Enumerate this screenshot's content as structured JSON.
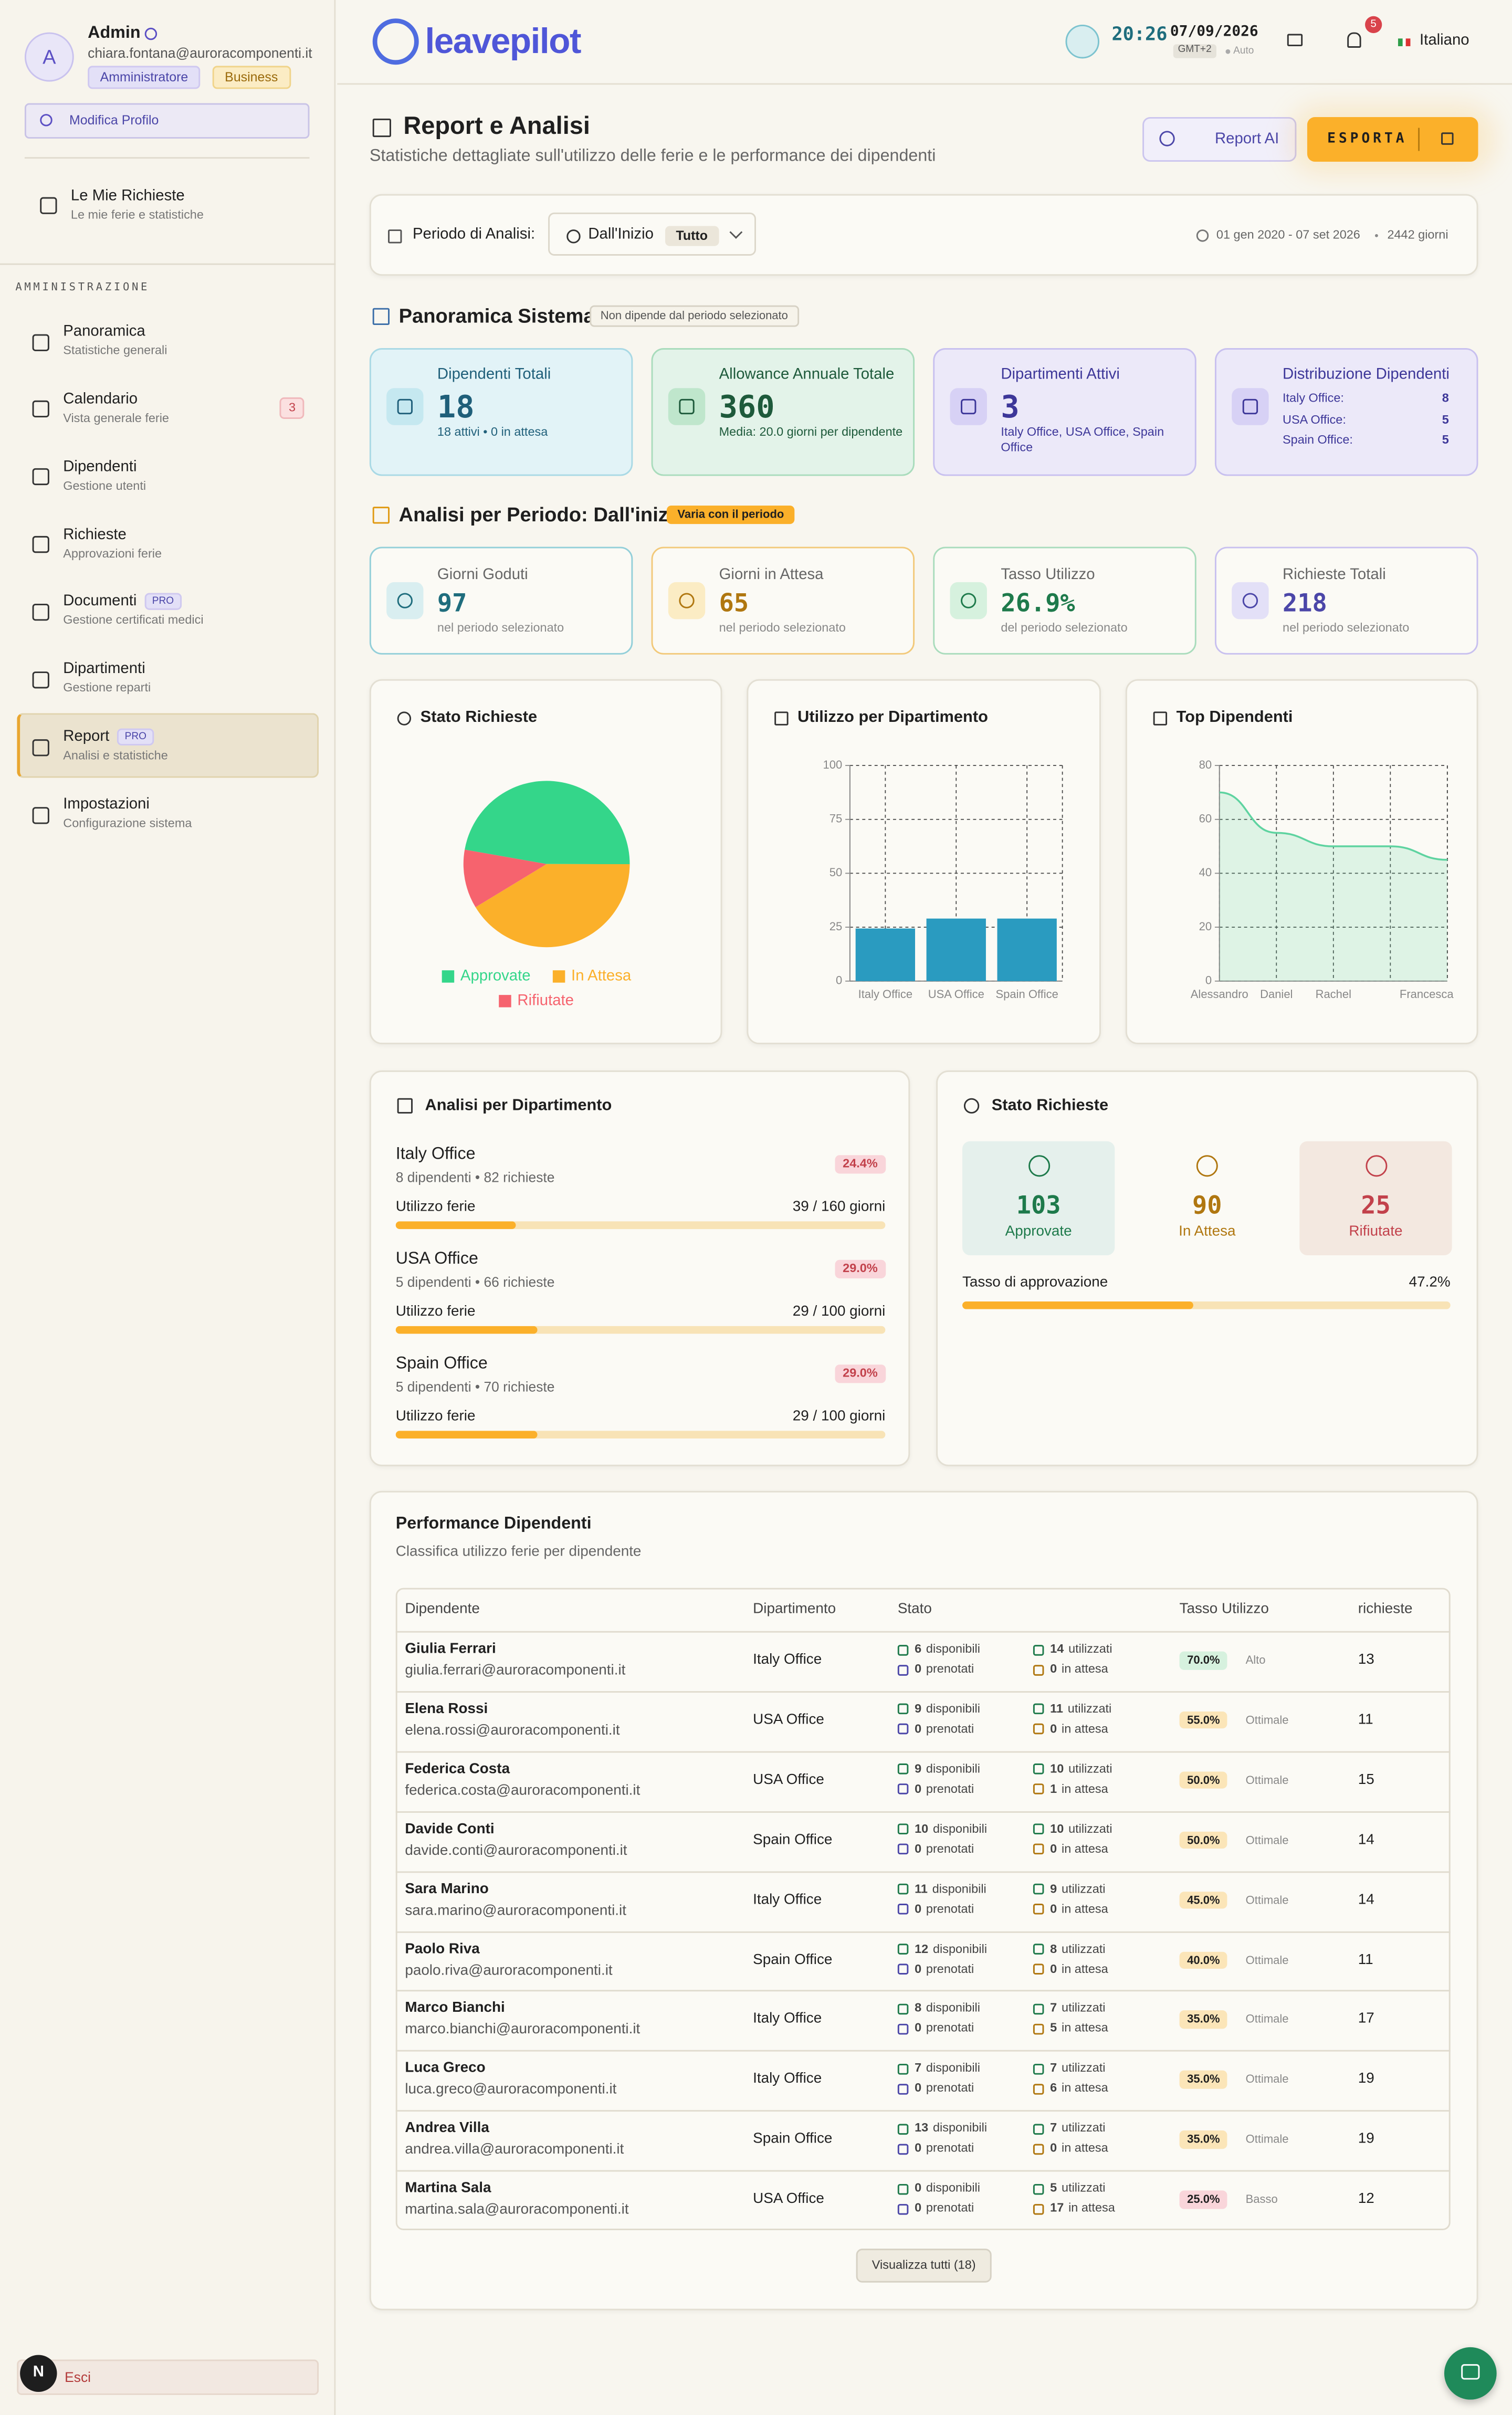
{
  "sidebar": {
    "user": {
      "initial": "A",
      "name": "Admin",
      "email": "chiara.fontana@auroracomponenti.it",
      "roles": [
        "Amministratore",
        "Business"
      ],
      "edit": "Modifica Profilo"
    },
    "my_requests": {
      "title": "Le Mie Richieste",
      "subtitle": "Le mie ferie e statistiche"
    },
    "section": "AMMINISTRAZIONE",
    "items": [
      {
        "title": "Panoramica",
        "subtitle": "Statistiche generali"
      },
      {
        "title": "Calendario",
        "subtitle": "Vista generale ferie",
        "badge": "3"
      },
      {
        "title": "Dipendenti",
        "subtitle": "Gestione utenti"
      },
      {
        "title": "Richieste",
        "subtitle": "Approvazioni ferie"
      },
      {
        "title": "Documenti",
        "subtitle": "Gestione certificati medici",
        "tag": "PRO"
      },
      {
        "title": "Dipartimenti",
        "subtitle": "Gestione reparti"
      },
      {
        "title": "Report",
        "subtitle": "Analisi e statistiche",
        "tag": "PRO",
        "active": true
      },
      {
        "title": "Impostazioni",
        "subtitle": "Configurazione sistema"
      }
    ],
    "avatar": "N",
    "logout": "Esci"
  },
  "header": {
    "logo": "leavepilot",
    "time": "20:26",
    "date": "07/09/2026",
    "timezone": "GMT+2",
    "auto": "Auto",
    "notifications": "5",
    "language": "Italiano"
  },
  "page": {
    "title": "Report e Analisi",
    "subtitle": "Statistiche dettagliate sull'utilizzo delle ferie e le performance dei dipendenti",
    "report_ai": "Report AI",
    "export": "ESPORTA"
  },
  "period": {
    "label": "Periodo di Analisi:",
    "selector": "Dall'Inizio",
    "tag": "Tutto",
    "range": "01 gen 2020 - 07 set 2026",
    "days": "2442 giorni"
  },
  "overview": {
    "title": "Panoramica Sistema",
    "note": "Non dipende dal periodo selezionato",
    "cards": [
      {
        "title": "Dipendenti Totali",
        "value": "18",
        "detail": "18 attivi • 0 in attesa"
      },
      {
        "title": "Allowance Annuale Totale",
        "value": "360",
        "detail": "Media: 20.0 giorni per dipendente"
      },
      {
        "title": "Dipartimenti Attivi",
        "value": "3",
        "detail": "Italy Office, USA Office, Spain Office"
      },
      {
        "title": "Distribuzione Dipendenti",
        "rows": [
          {
            "label": "Italy Office:",
            "value": "8"
          },
          {
            "label": "USA Office:",
            "value": "5"
          },
          {
            "label": "Spain Office:",
            "value": "5"
          }
        ]
      }
    ]
  },
  "period_analysis": {
    "title": "Analisi per Periodo: Dall'inizio",
    "tag": "Varia con il periodo",
    "cards": [
      {
        "title": "Giorni Goduti",
        "value": "97",
        "detail": "nel periodo selezionato"
      },
      {
        "title": "Giorni in Attesa",
        "value": "65",
        "detail": "nel periodo selezionato"
      },
      {
        "title": "Tasso Utilizzo",
        "value": "26.9%",
        "detail": "del periodo selezionato"
      },
      {
        "title": "Richieste Totali",
        "value": "218",
        "detail": "nel periodo selezionato"
      }
    ]
  },
  "chart_data": [
    {
      "type": "pie",
      "title": "Stato Richieste",
      "categories": [
        "Approvate",
        "In Attesa",
        "Rifiutate"
      ],
      "values": [
        103,
        90,
        25
      ],
      "colors": [
        "#34d68a",
        "#fbb02a",
        "#f6636e"
      ]
    },
    {
      "type": "bar",
      "title": "Utilizzo per Dipartimento",
      "categories": [
        "Italy Office",
        "USA Office",
        "Spain Office"
      ],
      "values": [
        24.4,
        29,
        29
      ],
      "color": "#2a9bc0",
      "ylim": [
        0,
        100
      ],
      "yticks": [
        0,
        25,
        50,
        75,
        100
      ],
      "grid": true
    },
    {
      "type": "line",
      "title": "Top Dipendenti",
      "categories": [
        "Alessandro",
        "Daniel",
        "Rachel",
        null,
        "Francesca"
      ],
      "values": [
        70,
        55,
        50,
        50,
        45
      ],
      "color": "#5ed3a0",
      "ylim": [
        0,
        80
      ],
      "yticks": [
        0,
        20,
        40,
        60,
        80
      ],
      "grid": true
    }
  ],
  "departments": {
    "title": "Analisi per Dipartimento",
    "usage_title": "Utilizzo ferie",
    "items": [
      {
        "name": "Italy Office",
        "info": "8 dipendenti • 82 richieste",
        "usage": 24.4,
        "usage_label": "24.4%",
        "days": "39 / 160 giorni"
      },
      {
        "name": "USA Office",
        "info": "5 dipendenti • 66 richieste",
        "usage": 29,
        "usage_label": "29.0%",
        "days": "29 / 100 giorni"
      },
      {
        "name": "Spain Office",
        "info": "5 dipendenti • 70 richieste",
        "usage": 29,
        "usage_label": "29.0%",
        "days": "29 / 100 giorni"
      }
    ]
  },
  "request_status": {
    "title": "Stato Richieste",
    "tiles": [
      {
        "value": "103",
        "label": "Approvate"
      },
      {
        "value": "90",
        "label": "In Attesa"
      },
      {
        "value": "25",
        "label": "Rifiutate"
      }
    ],
    "rate_title": "Tasso di approvazione",
    "rate": 47.2,
    "rate_label": "47.2%"
  },
  "performance": {
    "title": "Performance Dipendenti",
    "subtitle": "Classifica utilizzo ferie per dipendente",
    "columns": [
      "Dipendente",
      "Dipartimento",
      "Stato",
      "Tasso Utilizzo",
      "richieste"
    ],
    "status_words": {
      "available": "disponibili",
      "booked": "prenotati",
      "used": "utilizzati",
      "pending": "in attesa"
    },
    "rows": [
      {
        "name": "Giulia Ferrari",
        "email": "giulia.ferrari@auroracomponenti.it",
        "department": "Italy Office",
        "available": "6",
        "booked": "0",
        "used": "14",
        "pending": "0",
        "rate": "70.0%",
        "rating": "Alto",
        "requests": "13",
        "badge_color": "#d6f1de"
      },
      {
        "name": "Elena Rossi",
        "email": "elena.rossi@auroracomponenti.it",
        "department": "USA Office",
        "available": "9",
        "booked": "0",
        "used": "11",
        "pending": "0",
        "rate": "55.0%",
        "rating": "Ottimale",
        "requests": "11",
        "badge_color": "#fbe5b8"
      },
      {
        "name": "Federica Costa",
        "email": "federica.costa@auroracomponenti.it",
        "department": "USA Office",
        "available": "9",
        "booked": "0",
        "used": "10",
        "pending": "1",
        "rate": "50.0%",
        "rating": "Ottimale",
        "requests": "15",
        "badge_color": "#fbe5b8"
      },
      {
        "name": "Davide Conti",
        "email": "davide.conti@auroracomponenti.it",
        "department": "Spain Office",
        "available": "10",
        "booked": "0",
        "used": "10",
        "pending": "0",
        "rate": "50.0%",
        "rating": "Ottimale",
        "requests": "14",
        "badge_color": "#fbe5b8"
      },
      {
        "name": "Sara Marino",
        "email": "sara.marino@auroracomponenti.it",
        "department": "Italy Office",
        "available": "11",
        "booked": "0",
        "used": "9",
        "pending": "0",
        "rate": "45.0%",
        "rating": "Ottimale",
        "requests": "14",
        "badge_color": "#fbe5b8"
      },
      {
        "name": "Paolo Riva",
        "email": "paolo.riva@auroracomponenti.it",
        "department": "Spain Office",
        "available": "12",
        "booked": "0",
        "used": "8",
        "pending": "0",
        "rate": "40.0%",
        "rating": "Ottimale",
        "requests": "11",
        "badge_color": "#fbe5b8"
      },
      {
        "name": "Marco Bianchi",
        "email": "marco.bianchi@auroracomponenti.it",
        "department": "Italy Office",
        "available": "8",
        "booked": "0",
        "used": "7",
        "pending": "5",
        "rate": "35.0%",
        "rating": "Ottimale",
        "requests": "17",
        "badge_color": "#fbe5b8"
      },
      {
        "name": "Luca Greco",
        "email": "luca.greco@auroracomponenti.it",
        "department": "Italy Office",
        "available": "7",
        "booked": "0",
        "used": "7",
        "pending": "6",
        "rate": "35.0%",
        "rating": "Ottimale",
        "requests": "19",
        "badge_color": "#fbe5b8"
      },
      {
        "name": "Andrea Villa",
        "email": "andrea.villa@auroracomponenti.it",
        "department": "Spain Office",
        "available": "13",
        "booked": "0",
        "used": "7",
        "pending": "0",
        "rate": "35.0%",
        "rating": "Ottimale",
        "requests": "19",
        "badge_color": "#fbe5b8"
      },
      {
        "name": "Martina Sala",
        "email": "martina.sala@auroracomponenti.it",
        "department": "USA Office",
        "available": "0",
        "booked": "0",
        "used": "5",
        "pending": "17",
        "rate": "25.0%",
        "rating": "Basso",
        "requests": "12",
        "badge_color": "#f9d5da"
      }
    ],
    "view_all": "Visualizza tutti (18)"
  }
}
